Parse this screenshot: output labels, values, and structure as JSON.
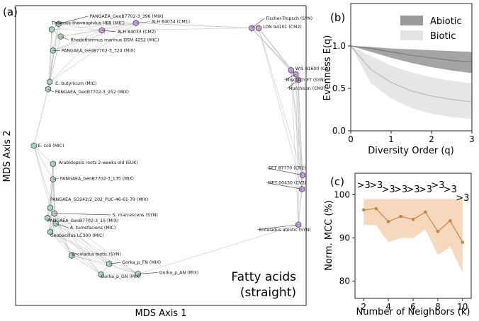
{
  "chart_data": [
    {
      "type": "scatter",
      "panel_label": "(a)",
      "xlabel": "MDS Axis 1",
      "ylabel": "MDS Axis 2",
      "annotation": [
        "Fatty acids",
        "(straight)"
      ],
      "colors": {
        "abiotic_node": "#c99be0",
        "biotic_node": "#a9d4bd",
        "node_edge": "#4a4a4a",
        "edge": "#b8b8b8"
      },
      "points": [
        {
          "label": "PANGAEA_GeoB7702-3_396 (MIX)",
          "x": 0.11,
          "y": 0.955,
          "group": "biotic"
        },
        {
          "label": "Thermus thermophilus HB8 (MIC)",
          "x": 0.085,
          "y": 0.935,
          "group": "biotic"
        },
        {
          "label": "ALH 84034 (CM1)",
          "x": 0.392,
          "y": 0.958,
          "group": "abiotic"
        },
        {
          "label": "ALH 84033 (CM2)",
          "x": 0.268,
          "y": 0.932,
          "group": "abiotic"
        },
        {
          "label": "Rhodothermus marinus DSM 4252 (MIC)",
          "x": 0.118,
          "y": 0.91,
          "group": "biotic"
        },
        {
          "label": "Fischer-Tropsch (SYN)",
          "x": 0.815,
          "y": 0.94,
          "group": "abiotic"
        },
        {
          "label": "LON 94101 (CM2)",
          "x": 0.84,
          "y": 0.94,
          "group": "abiotic"
        },
        {
          "label": "PANGAEA_GeoB7702-3_324 (MIX)",
          "x": 0.09,
          "y": 0.86,
          "group": "biotic"
        },
        {
          "label": "WIS 91600 (C2)",
          "x": 0.958,
          "y": 0.79,
          "group": "abiotic"
        },
        {
          "label": "Mischtch FT (SYN)",
          "x": 0.975,
          "y": 0.775,
          "group": "abiotic"
        },
        {
          "label": "Murchison (CM2)",
          "x": 0.985,
          "y": 0.755,
          "group": "abiotic"
        },
        {
          "label": "C. butyricum (MIC)",
          "x": 0.078,
          "y": 0.748,
          "group": "biotic"
        },
        {
          "label": "PANGAEA_GeoB7702-3_252 (MIX)",
          "x": 0.072,
          "y": 0.722,
          "group": "biotic"
        },
        {
          "label": "E. coli (MIC)",
          "x": 0.02,
          "y": 0.52,
          "group": "biotic"
        },
        {
          "label": "Arabidopsis roots 2-weeks old (EUK)",
          "x": 0.09,
          "y": 0.455,
          "group": "biotic"
        },
        {
          "label": "PANGAEA_GeoB7702-3_135 (MIX)",
          "x": 0.09,
          "y": 0.4,
          "group": "biotic"
        },
        {
          "label": "EET 87770 (CR2)",
          "x": 1.0,
          "y": 0.415,
          "group": "abiotic"
        },
        {
          "label": "MET 00430 (CV3)",
          "x": 0.998,
          "y": 0.365,
          "group": "abiotic"
        },
        {
          "label": "PANGAEA_SO242/2_202_PUC-46-61-79 (MIX)",
          "x": 0.08,
          "y": 0.298,
          "group": "biotic"
        },
        {
          "label": "S. marcescens (SYN)",
          "x": 0.095,
          "y": 0.278,
          "group": "biotic"
        },
        {
          "label": "PANGAEA_GeoB7702-3_15 (MIX)",
          "x": 0.07,
          "y": 0.262,
          "group": "biotic"
        },
        {
          "label": "A. tumefaciens (MIC)",
          "x": 0.1,
          "y": 0.242,
          "group": "biotic"
        },
        {
          "label": "Enceladus abiotic (SYN)",
          "x": 0.985,
          "y": 0.238,
          "group": "abiotic"
        },
        {
          "label": "Geobacillus LC300 (MIC)",
          "x": 0.08,
          "y": 0.212,
          "group": "biotic"
        },
        {
          "label": "Enceladus biotic (SYN)",
          "x": 0.158,
          "y": 0.128,
          "group": "biotic"
        },
        {
          "label": "Gorka_p_FN (MIX)",
          "x": 0.295,
          "y": 0.098,
          "group": "biotic"
        },
        {
          "label": "Gorka_p_AN (MIX)",
          "x": 0.4,
          "y": 0.062,
          "group": "biotic"
        },
        {
          "label": "Gorka_p_GN (MIX)",
          "x": 0.265,
          "y": 0.06,
          "group": "biotic"
        }
      ]
    },
    {
      "type": "line",
      "panel_label": "(b)",
      "xlabel": "Diversity Order (q)",
      "ylabel": "Evenness E(q)",
      "xlim": [
        0,
        3
      ],
      "ylim": [
        0,
        1.5
      ],
      "xticks": [
        "0",
        "1",
        "2",
        "3"
      ],
      "yticks": [
        "0.0",
        "0.5",
        "1.0"
      ],
      "legend_position": "top-right",
      "series": [
        {
          "name": "Abiotic",
          "color": "#7a7a7a",
          "band_color": "#9a9a9a",
          "x": [
            0,
            0.5,
            1,
            1.5,
            2,
            2.5,
            3
          ],
          "mean": [
            1.0,
            0.97,
            0.93,
            0.89,
            0.86,
            0.83,
            0.81
          ],
          "lower": [
            1.0,
            0.93,
            0.86,
            0.8,
            0.75,
            0.71,
            0.68
          ],
          "upper": [
            1.0,
            0.99,
            0.97,
            0.96,
            0.95,
            0.94,
            0.93
          ]
        },
        {
          "name": "Biotic",
          "color": "#b9b9b9",
          "band_color": "#e3e3e3",
          "x": [
            0,
            0.5,
            1,
            1.5,
            2,
            2.5,
            3
          ],
          "mean": [
            1.0,
            0.72,
            0.57,
            0.47,
            0.41,
            0.37,
            0.34
          ],
          "lower": [
            1.0,
            0.56,
            0.38,
            0.27,
            0.2,
            0.16,
            0.14
          ],
          "upper": [
            1.0,
            0.88,
            0.77,
            0.69,
            0.63,
            0.59,
            0.56
          ]
        }
      ]
    },
    {
      "type": "line",
      "panel_label": "(c)",
      "xlabel": "Number of Neighbors (k)",
      "ylabel": "Norm. MCC (%)",
      "xlim": [
        1.3,
        10.7
      ],
      "ylim": [
        76,
        105
      ],
      "xticks": [
        "2",
        "4",
        "6",
        "8",
        "10"
      ],
      "yticks": [
        "80",
        "90",
        "100"
      ],
      "line_color": "#c8833e",
      "band_color": "#f6d9bd",
      "x": [
        2,
        3,
        4,
        5,
        6,
        7,
        8,
        9,
        10
      ],
      "values": [
        96.5,
        96.8,
        93.8,
        95.0,
        94.3,
        96.0,
        91.5,
        94.0,
        89.0
      ],
      "lower": [
        93,
        93,
        89,
        90,
        90,
        92,
        86,
        88,
        82
      ],
      "upper": [
        99,
        99,
        99,
        99,
        99,
        99,
        99,
        99,
        99
      ],
      "point_annotations": [
        ">3",
        ">3",
        ">3",
        ">3",
        ">3",
        ">3",
        ">3",
        ">3",
        ">3"
      ]
    }
  ]
}
